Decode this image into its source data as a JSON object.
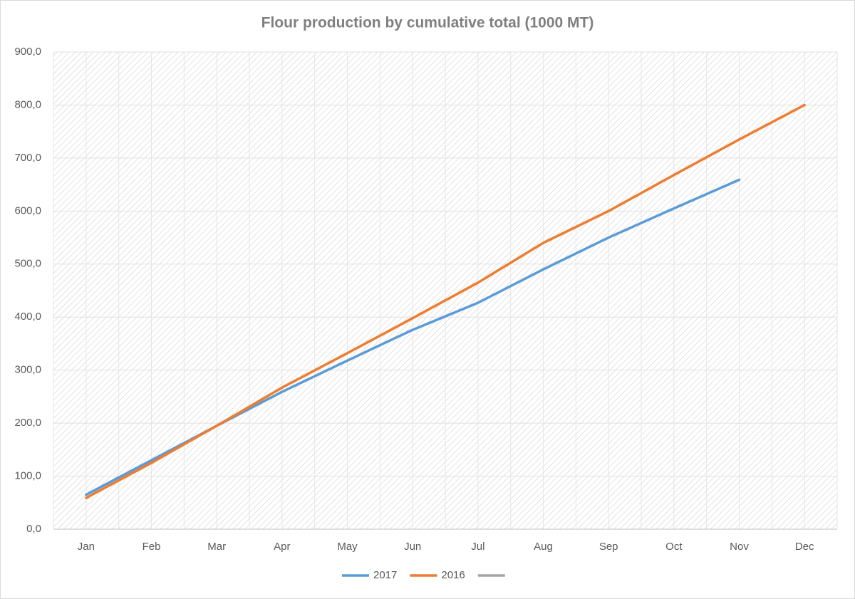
{
  "chart_data": {
    "type": "line",
    "title": "Flour production by cumulative total (1000 MT)",
    "categories": [
      "Jan",
      "Feb",
      "Mar",
      "Apr",
      "May",
      "Jun",
      "Jul",
      "Aug",
      "Sep",
      "Oct",
      "Nov",
      "Dec"
    ],
    "series": [
      {
        "name": "2017",
        "color": "#5b9bd5",
        "values": [
          65,
          130,
          195,
          259,
          318,
          376,
          427,
          490,
          550,
          605,
          659,
          null
        ]
      },
      {
        "name": "2016",
        "color": "#ed7d31",
        "values": [
          59,
          125,
          195,
          267,
          332,
          398,
          465,
          540,
          600,
          668,
          735,
          800
        ]
      },
      {
        "color": "#a5a5a5",
        "values": [
          null,
          null,
          null,
          null,
          null,
          null,
          null,
          null,
          null,
          null,
          null,
          null
        ]
      }
    ],
    "ylim": [
      0,
      900
    ],
    "yticks": [
      {
        "value": 0,
        "label": "0,0"
      },
      {
        "value": 100,
        "label": "100,0"
      },
      {
        "value": 200,
        "label": "200,0"
      },
      {
        "value": 300,
        "label": "300,0"
      },
      {
        "value": 400,
        "label": "400,0"
      },
      {
        "value": 500,
        "label": "500,0"
      },
      {
        "value": 600,
        "label": "600,0"
      },
      {
        "value": 700,
        "label": "700,0"
      },
      {
        "value": 800,
        "label": "800,0"
      },
      {
        "value": 900,
        "label": "900,0"
      }
    ],
    "grid": true,
    "legend": "bottom"
  }
}
